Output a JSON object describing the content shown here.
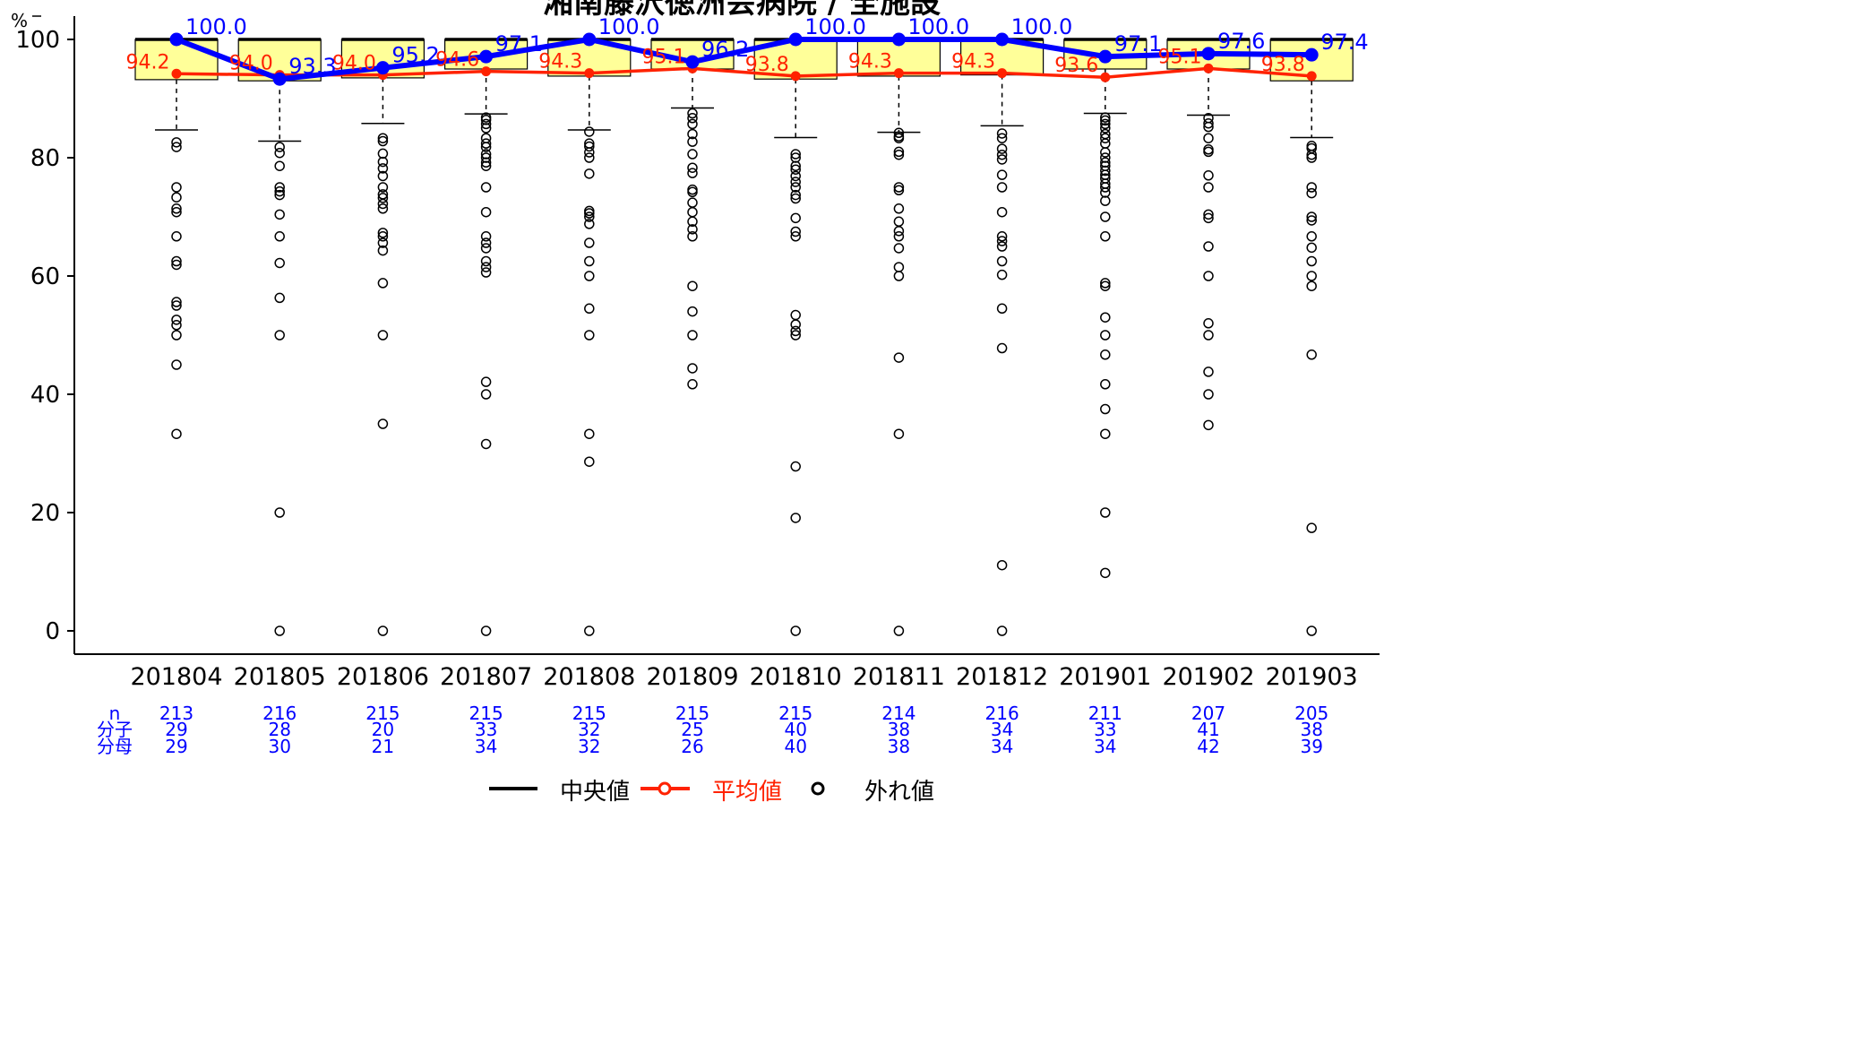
{
  "chart_data": {
    "type": "box",
    "title": "湘南藤沢徳洲会病院 / 全施設",
    "ylabel": "%",
    "ylim": [
      0,
      100
    ],
    "yticks": [
      0,
      20,
      40,
      60,
      80,
      100
    ],
    "categories": [
      "201804",
      "201805",
      "201806",
      "201807",
      "201808",
      "201809",
      "201810",
      "201811",
      "201812",
      "201901",
      "201902",
      "201903"
    ],
    "boxes": [
      {
        "q1": 93.2,
        "median": 100,
        "q3": 100,
        "whisker_low": 84.7
      },
      {
        "q1": 93.0,
        "median": 100,
        "q3": 100,
        "whisker_low": 82.8
      },
      {
        "q1": 93.5,
        "median": 100,
        "q3": 100,
        "whisker_low": 85.8
      },
      {
        "q1": 95.0,
        "median": 100,
        "q3": 100,
        "whisker_low": 87.4
      },
      {
        "q1": 93.8,
        "median": 100,
        "q3": 100,
        "whisker_low": 84.7
      },
      {
        "q1": 95.0,
        "median": 100,
        "q3": 100,
        "whisker_low": 88.4
      },
      {
        "q1": 93.3,
        "median": 100,
        "q3": 100,
        "whisker_low": 83.4
      },
      {
        "q1": 93.8,
        "median": 100,
        "q3": 100,
        "whisker_low": 84.3
      },
      {
        "q1": 94.0,
        "median": 100,
        "q3": 100,
        "whisker_low": 85.4
      },
      {
        "q1": 95.0,
        "median": 100,
        "q3": 100,
        "whisker_low": 87.5
      },
      {
        "q1": 95.0,
        "median": 100,
        "q3": 100,
        "whisker_low": 87.2
      },
      {
        "q1": 93.0,
        "median": 100,
        "q3": 100,
        "whisker_low": 83.4
      }
    ],
    "outliers": [
      [
        82.6,
        81.8,
        75,
        73.3,
        71.4,
        70.8,
        66.7,
        62.5,
        61.9,
        55.6,
        55.0,
        52.6,
        51.7,
        50,
        45,
        33.3
      ],
      [
        81.8,
        80.8,
        78.6,
        75,
        74.3,
        73.7,
        70.4,
        66.7,
        62.2,
        56.3,
        50,
        20,
        0
      ],
      [
        83.3,
        82.8,
        80.7,
        79.3,
        78.2,
        76.9,
        75,
        73.8,
        73.2,
        72.2,
        71.4,
        67.3,
        66.7,
        65.6,
        64.3,
        58.8,
        50,
        35,
        0
      ],
      [
        86.8,
        86.4,
        85.7,
        85.0,
        83.3,
        82.4,
        81.8,
        80.6,
        80,
        79.2,
        78.6,
        75,
        70.8,
        66.7,
        65.6,
        64.7,
        62.5,
        61.5,
        60.6,
        42.1,
        40,
        31.6,
        0
      ],
      [
        84.4,
        82.4,
        81.9,
        80.9,
        80.0,
        77.3,
        71,
        70.6,
        70,
        68.8,
        65.6,
        62.5,
        60,
        54.5,
        50,
        33.3,
        28.6,
        0
      ],
      [
        87.5,
        86.7,
        85.7,
        84,
        82.7,
        80.6,
        78.3,
        77.4,
        74.6,
        74.2,
        72.4,
        70.8,
        69.2,
        67.9,
        66.7,
        58.3,
        54,
        50,
        44.4,
        41.7
      ],
      [
        80.6,
        80,
        78.6,
        78,
        76.9,
        75.9,
        75,
        73.7,
        73.1,
        69.8,
        67.5,
        66.7,
        53.4,
        51.8,
        50.7,
        50,
        27.8,
        19.1,
        0
      ],
      [
        84.2,
        83.6,
        83.3,
        81,
        80.5,
        75,
        74.5,
        71.4,
        69.2,
        67.6,
        66.7,
        64.7,
        61.5,
        60,
        46.2,
        33.3,
        0
      ],
      [
        84.1,
        83.3,
        81.5,
        80.5,
        79.7,
        77.1,
        75,
        70.8,
        66.7,
        65.9,
        65,
        62.5,
        60.2,
        54.5,
        47.8,
        11.1,
        0
      ],
      [
        86.8,
        86.3,
        85.7,
        85,
        84,
        83.3,
        82.4,
        80.9,
        80,
        79.2,
        78.6,
        77.8,
        77.1,
        76.5,
        75.6,
        75,
        74.1,
        72.7,
        70,
        66.7,
        58.8,
        58.3,
        53,
        50,
        46.7,
        41.7,
        37.5,
        33.3,
        20,
        9.8
      ],
      [
        86.7,
        85.8,
        85.2,
        83.3,
        81.4,
        81,
        77,
        75,
        70.4,
        69.8,
        65,
        60,
        52,
        50,
        43.8,
        40,
        34.8
      ],
      [
        82,
        81.6,
        80.5,
        80,
        75,
        74,
        70,
        69.4,
        66.7,
        64.8,
        62.5,
        60,
        58.3,
        46.7,
        17.4,
        0
      ]
    ],
    "series": [
      {
        "name": "中央値",
        "color": "#0000ff",
        "values": [
          100.0,
          93.3,
          95.2,
          97.1,
          100.0,
          96.2,
          100.0,
          100.0,
          100.0,
          97.1,
          97.6,
          97.4
        ],
        "labels": [
          "100.0",
          "93.3",
          "95.2",
          "97.1",
          "100.0",
          "96.2",
          "100.0",
          "100.0",
          "100.0",
          "97.1",
          "97.6",
          "97.4"
        ]
      },
      {
        "name": "平均値",
        "color": "#ff2200",
        "values": [
          94.2,
          94.0,
          94.0,
          94.6,
          94.3,
          95.1,
          93.8,
          94.3,
          94.3,
          93.6,
          95.1,
          93.8
        ],
        "labels": [
          "94.2",
          "94.0",
          "94.0",
          "94.6",
          "94.3",
          "95.1",
          "93.8",
          "94.3",
          "94.3",
          "93.6",
          "95.1",
          "93.8"
        ]
      }
    ],
    "table": {
      "row_labels": [
        "n",
        "分子",
        "分母"
      ],
      "color": "#0000ff",
      "n": [
        "213",
        "216",
        "215",
        "215",
        "215",
        "215",
        "215",
        "214",
        "216",
        "211",
        "207",
        "205"
      ],
      "numerator": [
        "29",
        "28",
        "20",
        "33",
        "32",
        "25",
        "40",
        "38",
        "34",
        "33",
        "41",
        "38"
      ],
      "denominator": [
        "29",
        "30",
        "21",
        "34",
        "32",
        "26",
        "40",
        "38",
        "34",
        "34",
        "42",
        "39"
      ]
    },
    "legend": {
      "position": "bottom",
      "items": [
        {
          "label": "中央値",
          "color": "#000000"
        },
        {
          "label": "平均値",
          "color": "#ff2200"
        },
        {
          "label": "外れ値",
          "color": "#000000"
        }
      ]
    },
    "box_fill": "#ffff99"
  }
}
